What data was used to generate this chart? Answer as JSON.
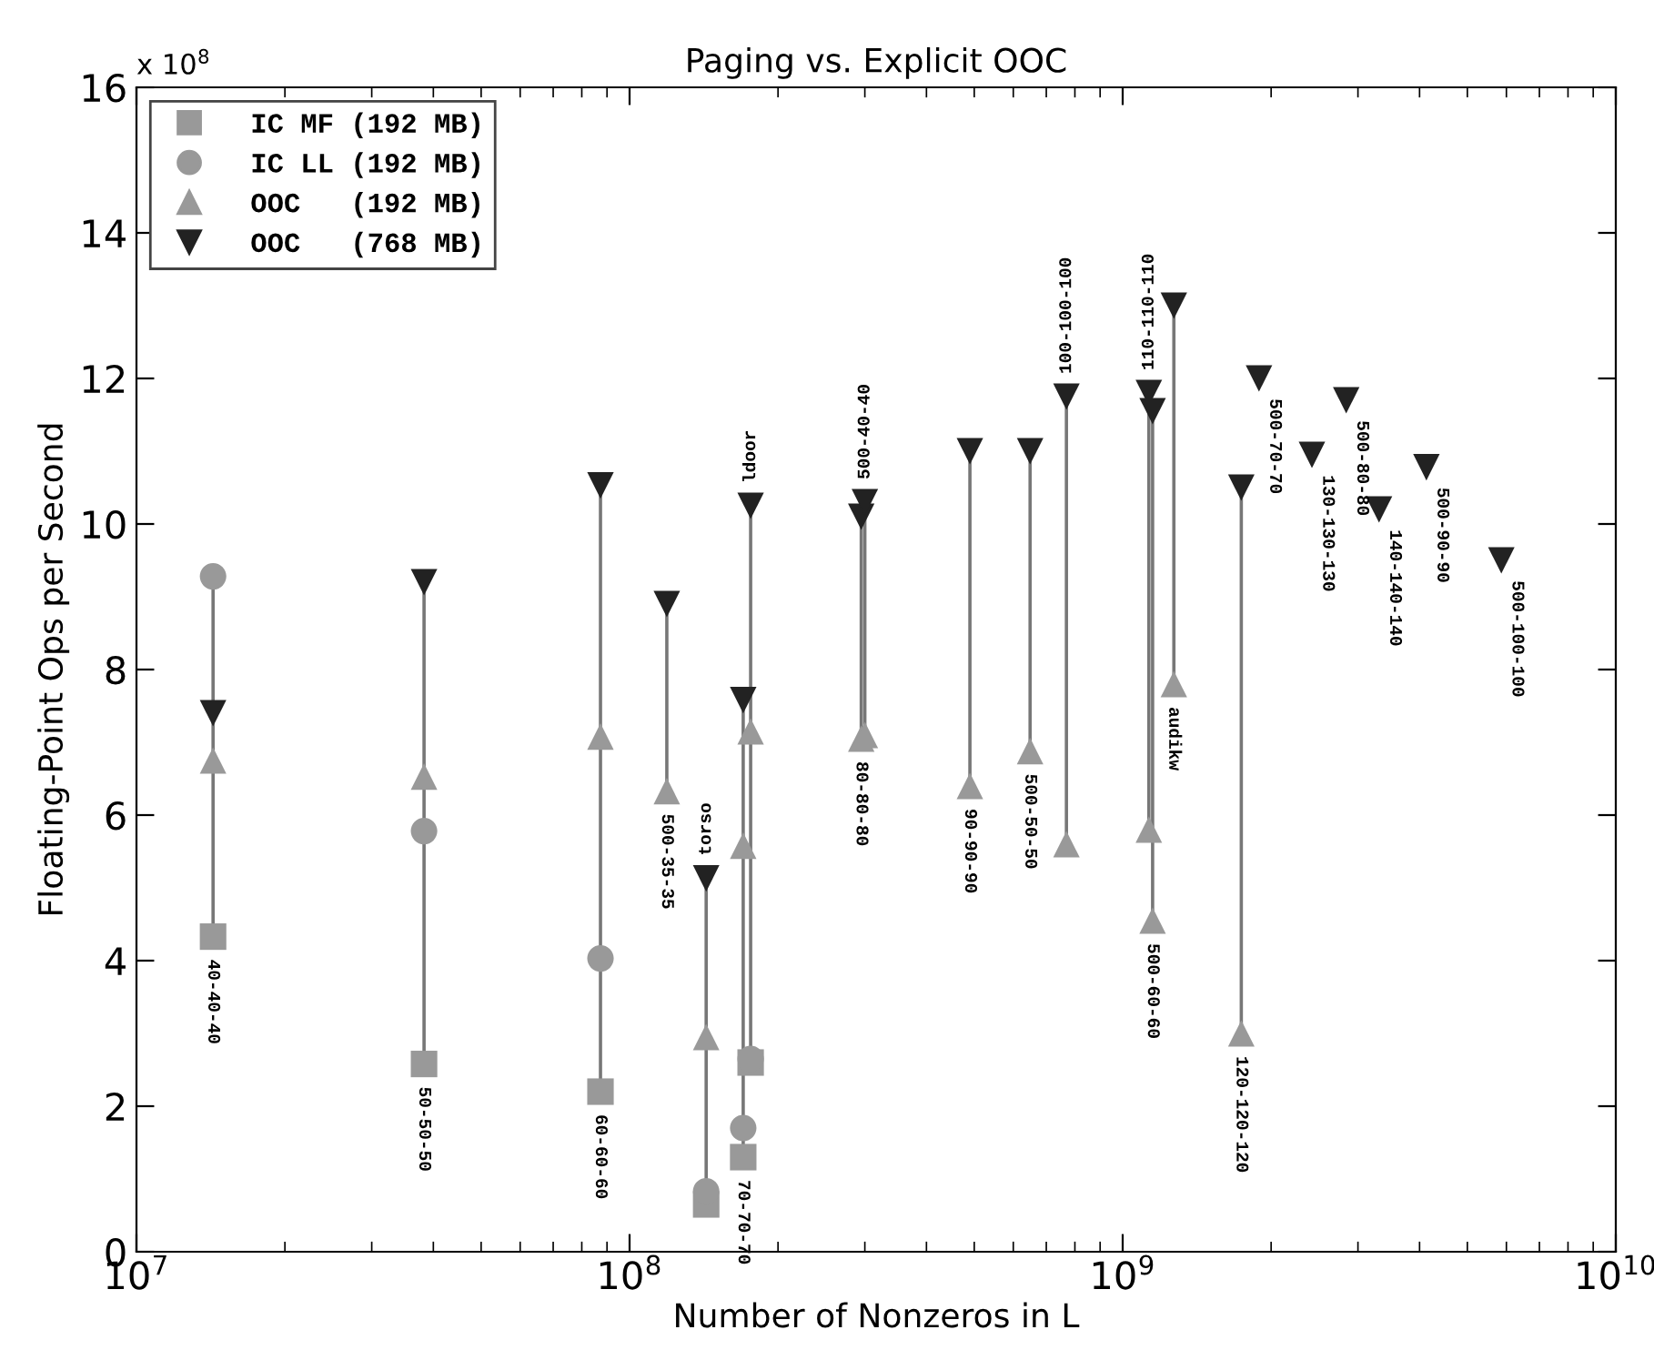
{
  "chart_data": {
    "type": "scatter",
    "title": "Paging vs. Explicit OOC",
    "xlabel": "Number of Nonzeros in L",
    "ylabel": "Floating-Point Ops per Second",
    "log": "x",
    "xlim": [
      10000000.0,
      10000000000.0
    ],
    "xticks": [
      {
        "value": 10000000.0,
        "label": "10$^{7}$"
      },
      {
        "value": 100000000.0,
        "label": "10$^{8}$"
      },
      {
        "value": 1000000000.0,
        "label": "10$^{9}$"
      },
      {
        "value": 10000000000.0,
        "label": "10$^{10}$"
      }
    ],
    "ylim": [
      0,
      16
    ],
    "yticks": [
      0,
      2,
      4,
      6,
      8,
      10,
      12,
      14,
      16
    ],
    "grid": false,
    "legend": "top left",
    "series": [
      {
        "type": "line",
        "color": "#777777",
        "x": [
          14300000.0,
          14300000.0
        ],
        "values": [
          4.33,
          9.28
        ]
      },
      {
        "type": "line",
        "color": "#777777",
        "x": [
          38300000.0,
          38300000.0
        ],
        "values": [
          2.58,
          9.2
        ]
      },
      {
        "type": "line",
        "color": "#777777",
        "x": [
          87300000.0,
          87300000.0
        ],
        "values": [
          2.2,
          10.53
        ]
      },
      {
        "type": "line",
        "color": "#777777",
        "x": [
          119000000.0,
          119000000.0
        ],
        "values": [
          6.33,
          8.9
        ]
      },
      {
        "type": "line",
        "color": "#777777",
        "x": [
          143000000.0,
          143000000.0
        ],
        "values": [
          0.65,
          5.13
        ]
      },
      {
        "type": "line",
        "color": "#777777",
        "x": [
          170000000.0,
          170000000.0
        ],
        "values": [
          1.3,
          7.58
        ]
      },
      {
        "type": "line",
        "color": "#777777",
        "x": [
          176000000.0,
          176000000.0
        ],
        "values": [
          2.6,
          10.25
        ]
      },
      {
        "type": "line",
        "color": "#777777",
        "x": [
          295000000.0,
          295000000.0
        ],
        "values": [
          7.05,
          10.1
        ]
      },
      {
        "type": "line",
        "color": "#777777",
        "x": [
          300000000.0,
          300000000.0
        ],
        "values": [
          7.1,
          10.3
        ]
      },
      {
        "type": "line",
        "color": "#777777",
        "x": [
          490000000.0,
          490000000.0
        ],
        "values": [
          6.4,
          11.0
        ]
      },
      {
        "type": "line",
        "color": "#777777",
        "x": [
          649000000.0,
          649000000.0
        ],
        "values": [
          6.88,
          11.0
        ]
      },
      {
        "type": "line",
        "color": "#777777",
        "x": [
          769000000.0,
          769000000.0
        ],
        "values": [
          5.6,
          11.75
        ]
      },
      {
        "type": "line",
        "color": "#777777",
        "x": [
          1130000000.0,
          1130000000.0
        ],
        "values": [
          5.8,
          11.8
        ]
      },
      {
        "type": "line",
        "color": "#777777",
        "x": [
          1150000000.0,
          1150000000.0
        ],
        "values": [
          4.55,
          11.55
        ]
      },
      {
        "type": "line",
        "color": "#777777",
        "x": [
          1270000000.0,
          1270000000.0
        ],
        "values": [
          7.8,
          13.0
        ]
      },
      {
        "type": "line",
        "color": "#777777",
        "x": [
          1740000000.0,
          1740000000.0
        ],
        "values": [
          3.0,
          10.5
        ]
      },
      {
        "name": "IC MF (192 MB)",
        "color": "#999999",
        "marker": "square",
        "x": [
          14300000.0,
          38300000.0,
          87300000.0,
          143000000.0,
          170000000.0,
          176000000.0
        ],
        "values": [
          4.33,
          2.58,
          2.2,
          0.65,
          1.3,
          2.6
        ]
      },
      {
        "name": "IC LL (192 MB)",
        "color": "#999999",
        "marker": "circle",
        "x": [
          14300000.0,
          38300000.0,
          87300000.0,
          143000000.0,
          170000000.0,
          176000000.0
        ],
        "values": [
          9.28,
          5.78,
          4.03,
          0.83,
          1.7,
          2.65
        ]
      },
      {
        "name": "OOC   (192 MB)",
        "color": "#999999",
        "marker": "triangle",
        "x": [
          14300000.0,
          38300000.0,
          87300000.0,
          119000000.0,
          143000000.0,
          170000000.0,
          176000000.0,
          295000000.0,
          300000000.0,
          490000000.0,
          649000000.0,
          769000000.0,
          1130000000.0,
          1150000000.0,
          1270000000.0,
          1740000000.0
        ],
        "values": [
          6.75,
          6.53,
          7.08,
          6.33,
          2.95,
          5.58,
          7.15,
          7.05,
          7.1,
          6.4,
          6.88,
          5.6,
          5.8,
          4.55,
          7.8,
          3.0
        ]
      },
      {
        "name": "OOC   (768 MB)",
        "color": "#222222",
        "marker": "triangle_down",
        "x": [
          14300000.0,
          38300000.0,
          87300000.0,
          119000000.0,
          143000000.0,
          170000000.0,
          176000000.0,
          295000000.0,
          300000000.0,
          490000000.0,
          649000000.0,
          769000000.0,
          1130000000.0,
          1150000000.0,
          1270000000.0,
          1740000000.0,
          1890000000.0,
          2420000000.0,
          2840000000.0,
          3310000000.0,
          4130000000.0,
          5860000000.0
        ],
        "values": [
          7.4,
          9.2,
          10.53,
          8.9,
          5.13,
          7.58,
          10.25,
          10.1,
          10.3,
          11.0,
          11.0,
          11.75,
          11.8,
          11.55,
          13.0,
          10.5,
          12.0,
          10.95,
          11.7,
          10.2,
          10.78,
          9.5
        ]
      }
    ],
    "annotations": [
      "x 10$^{8}$",
      {
        "text": "40-40-40",
        "x": 14300000.0,
        "y": 4.33
      },
      {
        "text": "50-50-50",
        "x": 38300000.0,
        "y": 2.58
      },
      {
        "text": "60-60-60",
        "x": 87300000.0,
        "y": 2.2
      },
      {
        "text": "500-35-35",
        "x": 119000000.0,
        "y": 6.33
      },
      {
        "text": "torso",
        "x": 143000000.0,
        "y": 5.13
      },
      {
        "text": "70-70-70",
        "x": 170000000.0,
        "y": 1.3
      },
      {
        "text": "ldoor",
        "x": 176000000.0,
        "y": 10.25
      },
      {
        "text": "500-40-40",
        "x": 300000000.0,
        "y": 10.3
      },
      {
        "text": "80-80-80",
        "x": 295000000.0,
        "y": 7.05
      },
      {
        "text": "90-90-90",
        "x": 490000000.0,
        "y": 6.4
      },
      {
        "text": "500-50-50",
        "x": 649000000.0,
        "y": 6.88
      },
      {
        "text": "100-100-100",
        "x": 769000000.0,
        "y": 11.75
      },
      {
        "text": "110-110-110",
        "x": 1130000000.0,
        "y": 11.8
      },
      {
        "text": "500-60-60",
        "x": 1150000000.0,
        "y": 4.55
      },
      {
        "text": "audikw",
        "x": 1270000000.0,
        "y": 7.8
      },
      {
        "text": "120-120-120",
        "x": 1740000000.0,
        "y": 3.0
      },
      {
        "text": "500-70-70",
        "x": 1890000000.0,
        "y": 12.0
      },
      {
        "text": "130-130-130",
        "x": 2420000000.0,
        "y": 10.95
      },
      {
        "text": "500-80-80",
        "x": 2840000000.0,
        "y": 11.7
      },
      {
        "text": "140-140-140",
        "x": 3310000000.0,
        "y": 10.2
      },
      {
        "text": "500-90-90",
        "x": 4130000000.0,
        "y": 10.78
      },
      {
        "text": "500-100-100",
        "x": 5860000000.0,
        "y": 9.5
      }
    ]
  }
}
